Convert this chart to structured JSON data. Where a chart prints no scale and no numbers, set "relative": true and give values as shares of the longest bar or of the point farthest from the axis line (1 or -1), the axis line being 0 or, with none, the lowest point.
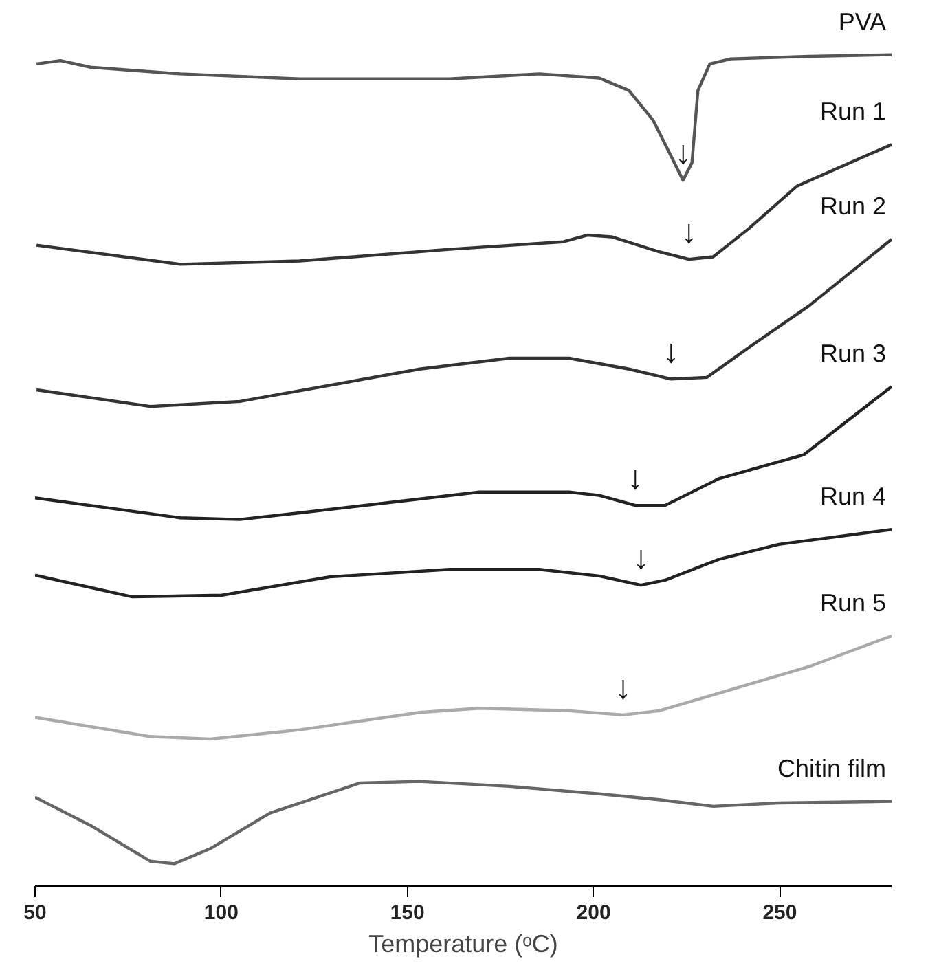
{
  "chart_data": {
    "type": "line",
    "xlabel": "Temperature (ᵒC)",
    "relative": true,
    "xlim": [
      50,
      280
    ],
    "xticks": [
      50,
      100,
      150,
      200,
      250
    ],
    "grid": false,
    "series": [
      {
        "name": "PVA",
        "color": "#555555",
        "x": [
          50.4,
          56.8,
          64.9,
          89.0,
          121.1,
          161.3,
          185.4,
          201.5,
          209.5,
          216.0,
          220.8,
          224.0,
          226.4,
          228.0,
          231.2,
          236.8,
          257.8,
          280
        ],
        "values": [
          0.989,
          0.993,
          0.985,
          0.977,
          0.971,
          0.971,
          0.977,
          0.972,
          0.957,
          0.921,
          0.878,
          0.849,
          0.87,
          0.957,
          0.989,
          0.995,
          0.998,
          1.0
        ]
      },
      {
        "name": "Run 1",
        "color": "#333333",
        "x": [
          50.4,
          89.0,
          121.1,
          161.3,
          191.9,
          198.3,
          204.8,
          217.6,
          225.6,
          232.1,
          241.7,
          254.6,
          280
        ],
        "values": [
          0.771,
          0.748,
          0.752,
          0.766,
          0.775,
          0.783,
          0.781,
          0.763,
          0.754,
          0.757,
          0.791,
          0.842,
          0.892
        ]
      },
      {
        "name": "Run 2",
        "color": "#333333",
        "x": [
          50.4,
          80.9,
          105.0,
          153.3,
          177.4,
          193.4,
          209.5,
          220.8,
          230.4,
          241.7,
          257.8,
          280
        ],
        "values": [
          0.597,
          0.577,
          0.583,
          0.622,
          0.635,
          0.635,
          0.622,
          0.61,
          0.612,
          0.648,
          0.698,
          0.778
        ]
      },
      {
        "name": "Run 3",
        "color": "#222222",
        "x": [
          50,
          89.0,
          105.0,
          121.1,
          169.3,
          193.4,
          201.5,
          211.2,
          219.2,
          233.6,
          256.5,
          280
        ],
        "values": [
          0.467,
          0.443,
          0.441,
          0.449,
          0.474,
          0.474,
          0.47,
          0.458,
          0.458,
          0.49,
          0.519,
          0.601
        ]
      },
      {
        "name": "Run 4",
        "color": "#222222",
        "x": [
          50,
          76.1,
          100.2,
          129.1,
          161.3,
          185.4,
          201.5,
          212.7,
          219.2,
          233.6,
          249.7,
          280
        ],
        "values": [
          0.374,
          0.348,
          0.35,
          0.372,
          0.381,
          0.381,
          0.373,
          0.362,
          0.368,
          0.393,
          0.411,
          0.429
        ]
      },
      {
        "name": "Run 5",
        "color": "#aaaaaa",
        "x": [
          50,
          80.9,
          97.0,
          121.1,
          153.3,
          169.3,
          193.4,
          207.9,
          217.6,
          233.6,
          257.8,
          280
        ],
        "values": [
          0.203,
          0.18,
          0.177,
          0.188,
          0.209,
          0.214,
          0.211,
          0.206,
          0.211,
          0.232,
          0.264,
          0.301
        ]
      },
      {
        "name": "Chitin film",
        "color": "#666666",
        "x": [
          50,
          64.9,
          80.9,
          87.4,
          97.0,
          113.1,
          137.2,
          153.3,
          177.4,
          201.5,
          217.6,
          232.1,
          249.7,
          280
        ],
        "values": [
          0.107,
          0.073,
          0.03,
          0.027,
          0.045,
          0.088,
          0.124,
          0.126,
          0.12,
          0.111,
          0.104,
          0.096,
          0.1,
          0.102
        ]
      }
    ],
    "annotations": [
      {
        "text": "↓",
        "x": 224.0,
        "y": 0.849
      },
      {
        "text": "↓",
        "x": 225.6,
        "y": 0.754
      },
      {
        "text": "↓",
        "x": 220.8,
        "y": 0.61
      },
      {
        "text": "↓",
        "x": 211.2,
        "y": 0.458
      },
      {
        "text": "↓",
        "x": 212.7,
        "y": 0.362
      },
      {
        "text": "↓",
        "x": 207.9,
        "y": 0.206
      }
    ]
  }
}
